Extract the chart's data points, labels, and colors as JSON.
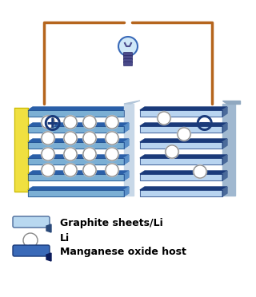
{
  "bg_color": "#ffffff",
  "title": "",
  "wire_color": "#b5651d",
  "cathode_color": "#f0e040",
  "graphite_sheet_light": "#7bafd4",
  "graphite_sheet_dark": "#2a5fa8",
  "manganese_sheet_light": "#4a7fc1",
  "manganese_sheet_dark": "#1a3a7a",
  "separator_color": "#c8d8e8",
  "li_ball_color": "#e8e8e8",
  "li_ball_edge": "#888888",
  "plus_symbol": "⊕",
  "minus_symbol": "⊖",
  "legend_items": [
    "Graphite sheets/Li",
    "Li",
    "Manganese oxide host"
  ],
  "fig_width": 3.2,
  "fig_height": 3.72
}
